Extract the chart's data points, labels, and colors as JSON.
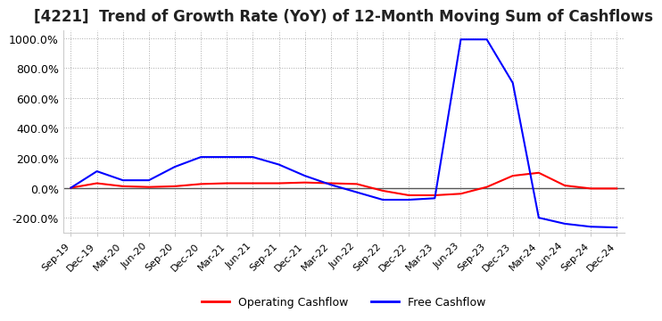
{
  "title": "[4221]  Trend of Growth Rate (YoY) of 12-Month Moving Sum of Cashflows",
  "title_fontsize": 12,
  "ylim": [
    -300,
    1050
  ],
  "yticks": [
    -200,
    0,
    200,
    400,
    600,
    800,
    1000
  ],
  "ytick_labels": [
    "-200.0%",
    "0.0%",
    "200.0%",
    "400.0%",
    "600.0%",
    "800.0%",
    "1000.0%"
  ],
  "background_color": "#ffffff",
  "grid_color": "#aaaaaa",
  "operating_color": "#ff0000",
  "free_color": "#0000ff",
  "x_labels": [
    "Sep-19",
    "Dec-19",
    "Mar-20",
    "Jun-20",
    "Sep-20",
    "Dec-20",
    "Mar-21",
    "Jun-21",
    "Sep-21",
    "Dec-21",
    "Mar-22",
    "Jun-22",
    "Sep-22",
    "Dec-22",
    "Mar-23",
    "Jun-23",
    "Sep-23",
    "Dec-23",
    "Mar-24",
    "Jun-24",
    "Sep-24",
    "Dec-24"
  ],
  "operating_cashflow": [
    0,
    30,
    10,
    5,
    10,
    25,
    30,
    30,
    30,
    35,
    30,
    25,
    -20,
    -50,
    -50,
    -40,
    5,
    80,
    100,
    15,
    -5,
    -5
  ],
  "free_cashflow": [
    0,
    110,
    50,
    50,
    140,
    205,
    205,
    205,
    155,
    80,
    20,
    -30,
    -80,
    -80,
    -70,
    990,
    990,
    700,
    -200,
    -240,
    -260,
    -265
  ]
}
